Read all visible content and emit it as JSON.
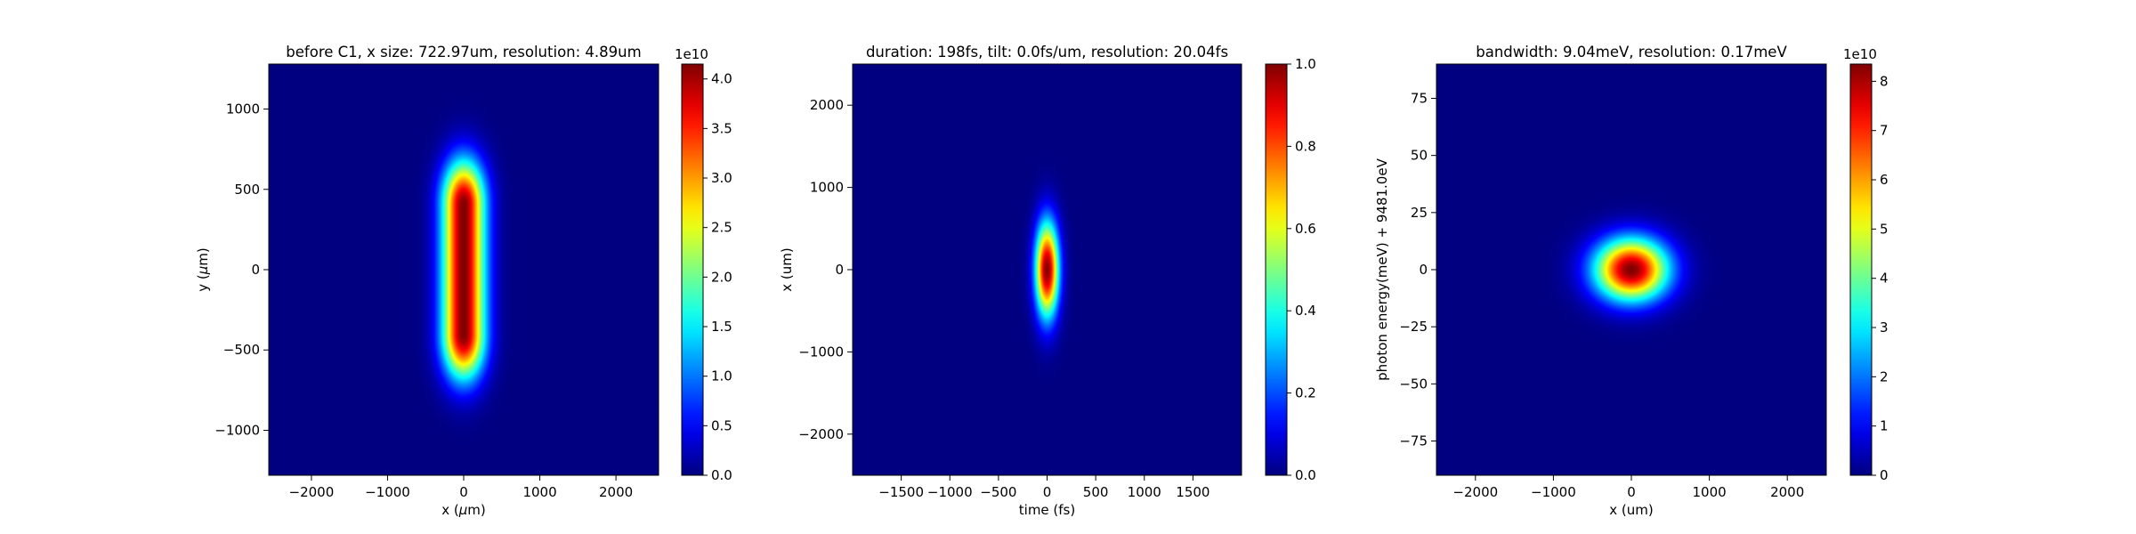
{
  "chart_data": [
    {
      "type": "heatmap",
      "title": "before C1, x size: 722.97um, resolution: 4.89um",
      "xlabel": "x ($\\mu$m)",
      "ylabel": "y ($\\mu$m)",
      "xlim": [
        -2560,
        2560
      ],
      "ylim": [
        -1280,
        1280
      ],
      "xticks": [
        -2000,
        -1000,
        0,
        1000,
        2000
      ],
      "yticks": [
        -1000,
        -500,
        0,
        500,
        1000
      ],
      "colorbar": {
        "range": [
          0,
          4.15
        ],
        "ticks": [
          "0.0",
          "0.5",
          "1.0",
          "1.5",
          "2.0",
          "2.5",
          "3.0",
          "3.5",
          "4.0"
        ],
        "tick_values": [
          0,
          0.5,
          1.0,
          1.5,
          2.0,
          2.5,
          3.0,
          3.5,
          4.0
        ],
        "exponent_label": "1e10"
      },
      "colormap": "jet",
      "grid": false,
      "shape": "stadium",
      "peak": 4.15,
      "center": [
        0,
        0
      ],
      "x_half_width": 390,
      "y_half_length": 400,
      "y_tail": 390
    },
    {
      "type": "heatmap",
      "title": "duration: 198fs, tilt: 0.0fs/um, resolution: 20.04fs",
      "xlabel": "time (fs)",
      "ylabel": "x (um)",
      "xlim": [
        -2000,
        2000
      ],
      "ylim": [
        -2500,
        2500
      ],
      "xticks": [
        -1500,
        -1000,
        -500,
        0,
        500,
        1000,
        1500
      ],
      "yticks": [
        -2000,
        -1000,
        0,
        1000,
        2000
      ],
      "colorbar": {
        "range": [
          0,
          1
        ],
        "ticks": [
          "0.0",
          "0.2",
          "0.4",
          "0.6",
          "0.8",
          "1.0"
        ],
        "tick_values": [
          0,
          0.2,
          0.4,
          0.6,
          0.8,
          1.0
        ],
        "exponent_label": ""
      },
      "colormap": "jet",
      "grid": false,
      "shape": "gaussian",
      "peak": 1.0,
      "center": [
        0,
        0
      ],
      "sigma_x": 84,
      "sigma_y": 400
    },
    {
      "type": "heatmap",
      "title": "bandwidth: 9.04meV, resolution: 0.17meV",
      "xlabel": "x (um)",
      "ylabel": "photon energy(meV) + 9481.0eV",
      "xlim": [
        -2500,
        2500
      ],
      "ylim": [
        -90,
        90
      ],
      "xticks": [
        -2000,
        -1000,
        0,
        1000,
        2000
      ],
      "yticks": [
        -75,
        -50,
        -25,
        0,
        25,
        50,
        75
      ],
      "colorbar": {
        "range": [
          0,
          8.35
        ],
        "ticks": [
          "0",
          "1",
          "2",
          "3",
          "4",
          "5",
          "6",
          "7",
          "8"
        ],
        "tick_values": [
          0,
          1,
          2,
          3,
          4,
          5,
          6,
          7,
          8
        ],
        "exponent_label": "1e10"
      },
      "colormap": "jet",
      "grid": false,
      "shape": "gaussian",
      "peak": 8.35,
      "center": [
        0,
        0
      ],
      "sigma_x": 330,
      "sigma_y": 9.5
    }
  ]
}
